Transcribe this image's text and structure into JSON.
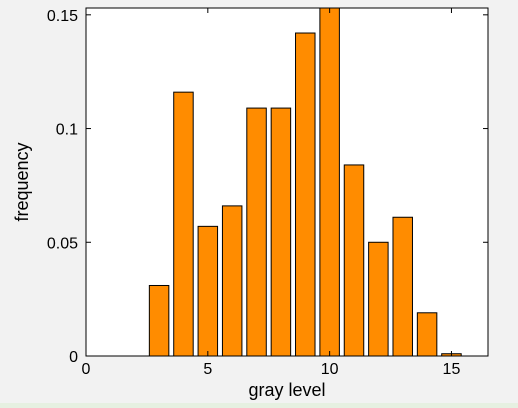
{
  "chart_data": {
    "type": "bar",
    "title": "",
    "xlabel": "gray level",
    "ylabel": "frequency",
    "x": [
      3,
      4,
      5,
      6,
      7,
      8,
      9,
      10,
      11,
      12,
      13,
      14,
      15
    ],
    "values": [
      0.031,
      0.116,
      0.057,
      0.066,
      0.109,
      0.109,
      0.142,
      0.153,
      0.084,
      0.05,
      0.061,
      0.019,
      0.001
    ],
    "xlim": [
      0,
      16.5
    ],
    "ylim": [
      0,
      0.153
    ],
    "xticks": [
      0,
      5,
      10,
      15
    ],
    "yticks": [
      0,
      0.05,
      0.1,
      0.15
    ],
    "xtick_labels": [
      "0",
      "5",
      "10",
      "15"
    ],
    "ytick_labels": [
      "0",
      "0.05",
      "0.1",
      "0.15"
    ],
    "grid": false,
    "bar_color": "#ff8c00",
    "bar_edge_color": "#000000",
    "background_color": "#ffffff"
  }
}
